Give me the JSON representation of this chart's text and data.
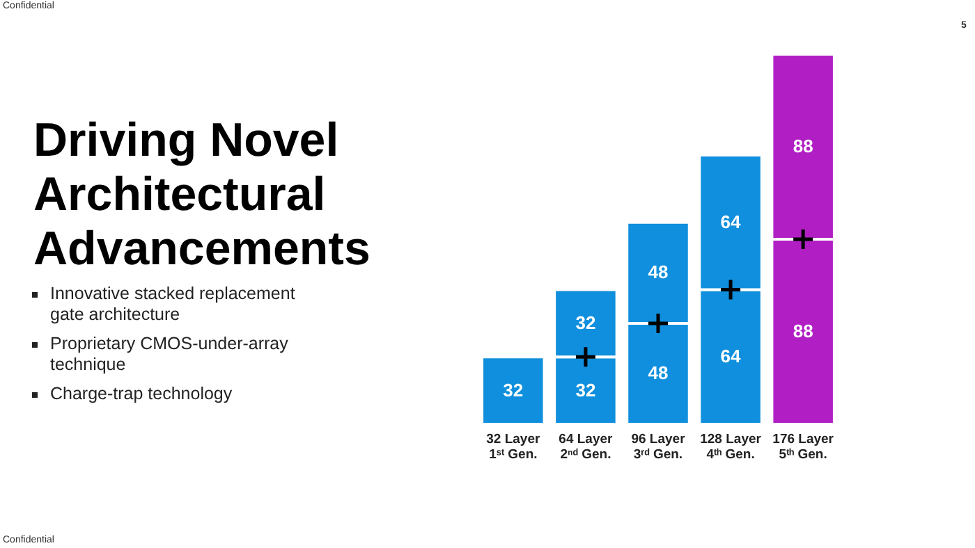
{
  "chart_data": {
    "type": "bar",
    "title": "Driving Novel Architectural Advancements",
    "categories": [
      "32 Layer 1ˢᵗ Gen.",
      "64 Layer 2ⁿᵈ Gen.",
      "96 Layer 3ʳᵈ Gen.",
      "128 Layer 4ᵗʰ Gen.",
      "176 Layer 5ᵗʰ Gen."
    ],
    "series": [
      {
        "colors": [
          "#0f8fdd",
          "#0f8fdd",
          "#0f8fdd",
          "#0f8fdd",
          "#b11fc4"
        ],
        "values": [
          32,
          32,
          48,
          64,
          88
        ]
      },
      {
        "colors": [
          null,
          "#0f8fdd",
          "#0f8fdd",
          "#0f8fdd",
          "#b11fc4"
        ],
        "values": [
          null,
          32,
          48,
          64,
          88
        ]
      }
    ],
    "stacked": true,
    "data_labels": true,
    "annotations": [
      "Innovative stacked replacement gate architecture",
      "Proprietary CMOS-under-array technique",
      "Charge-trap technology",
      "Confidential",
      "Confidential",
      "5"
    ]
  }
}
